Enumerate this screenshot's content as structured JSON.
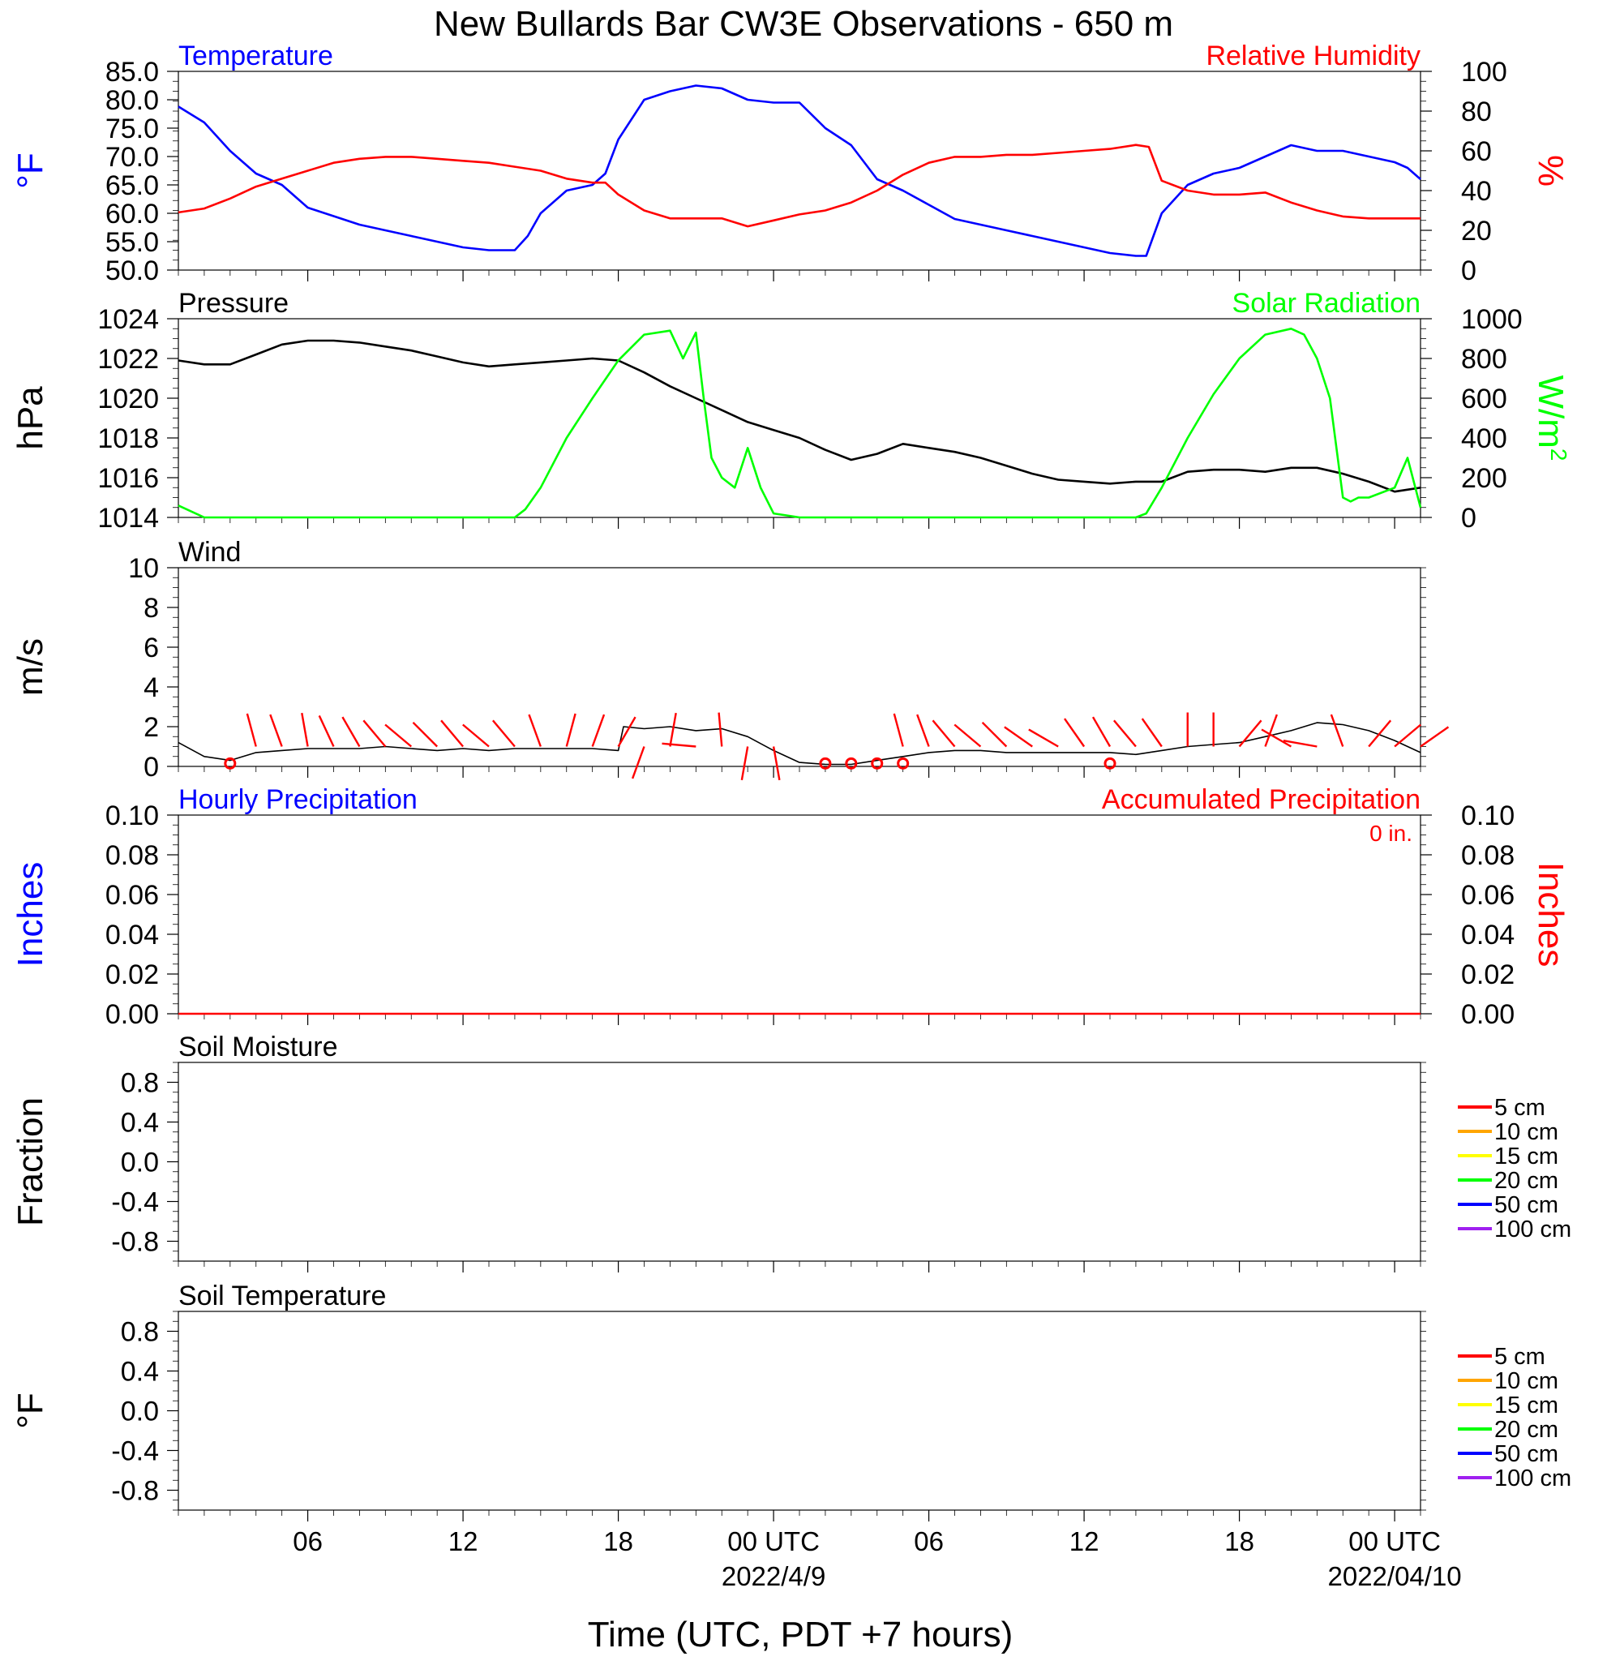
{
  "figure": {
    "title": "New Bullards Bar CW3E Observations - 650 m",
    "xlabel": "Time (UTC, PDT +7 hours)",
    "x_tick_labels": [
      "06",
      "12",
      "18",
      "00 UTC",
      "06",
      "12",
      "18",
      "00 UTC"
    ],
    "x_tick_hours": [
      6,
      12,
      18,
      24,
      30,
      36,
      42,
      48
    ],
    "date_labels": [
      {
        "text": "2022/4/9",
        "hour": 24
      },
      {
        "text": "2022/04/10",
        "hour": 48
      }
    ],
    "x_range_hours": [
      1,
      49
    ],
    "colors": {
      "blue": "#0000ff",
      "red": "#ff0000",
      "green": "#00ff00",
      "black": "#000000"
    }
  },
  "chart_data": [
    {
      "id": "temp_rh",
      "type": "line",
      "left_title": "Temperature",
      "right_title": "Relative Humidity",
      "ylabel_left": "°F",
      "ylabel_right": "%",
      "ylim_left": [
        50,
        85
      ],
      "ylim_right": [
        0,
        100
      ],
      "yticks_left": [
        "85.0",
        "80.0",
        "75.0",
        "70.0",
        "65.0",
        "60.0",
        "55.0",
        "50.0"
      ],
      "yticks_right": [
        "100",
        "80",
        "60",
        "40",
        "20",
        "0"
      ],
      "series": [
        {
          "name": "Temperature",
          "axis": "left",
          "color": "#0000ff",
          "x": [
            1,
            2,
            3,
            4,
            5,
            6,
            7,
            8,
            9,
            10,
            11,
            12,
            13,
            14,
            14.5,
            15,
            16,
            17,
            17.5,
            18,
            19,
            20,
            21,
            22,
            23,
            24,
            25,
            26,
            27,
            28,
            29,
            30,
            31,
            32,
            33,
            34,
            35,
            36,
            37,
            38,
            38.4,
            39,
            40,
            41,
            42,
            43,
            44,
            45,
            46,
            47,
            48,
            48.5,
            49
          ],
          "y": [
            78.8,
            76,
            71,
            67,
            65,
            61,
            59.5,
            58,
            57,
            56,
            55,
            54,
            53.5,
            53.5,
            56,
            60,
            64,
            65,
            67,
            73,
            80,
            81.5,
            82.5,
            82,
            80,
            79.5,
            79.5,
            75,
            72,
            66,
            64,
            61.5,
            59,
            58,
            57,
            56,
            55,
            54,
            53,
            52.5,
            52.5,
            60,
            65,
            67,
            68,
            70,
            72,
            71,
            71,
            70,
            69,
            68,
            66
          ]
        },
        {
          "name": "Relative Humidity",
          "axis": "right",
          "color": "#ff0000",
          "x": [
            1,
            2,
            3,
            4,
            5,
            6,
            7,
            8,
            9,
            10,
            11,
            12,
            13,
            14,
            15,
            16,
            17,
            17.5,
            18,
            19,
            20,
            21,
            22,
            23,
            24,
            25,
            26,
            27,
            28,
            29,
            30,
            31,
            32,
            33,
            34,
            35,
            36,
            37,
            38,
            38.5,
            39,
            40,
            41,
            42,
            43,
            44,
            45,
            46,
            47,
            48,
            49
          ],
          "y": [
            29,
            31,
            36,
            42,
            46,
            50,
            54,
            56,
            57,
            57,
            56,
            55,
            54,
            52,
            50,
            46,
            44,
            44,
            38,
            30,
            26,
            26,
            26,
            22,
            25,
            28,
            30,
            34,
            40,
            48,
            54,
            57,
            57,
            58,
            58,
            59,
            60,
            61,
            63,
            62,
            45,
            40,
            38,
            38,
            39,
            34,
            30,
            27,
            26,
            26,
            26
          ]
        }
      ]
    },
    {
      "id": "pressure_solar",
      "type": "line",
      "left_title": "Pressure",
      "right_title": "Solar Radiation",
      "ylabel_left": "hPa",
      "ylabel_right": "W/m",
      "ylabel_right_sup": "2",
      "ylim_left": [
        1014,
        1024
      ],
      "ylim_right": [
        0,
        1000
      ],
      "yticks_left": [
        "1024",
        "1022",
        "1020",
        "1018",
        "1016",
        "1014"
      ],
      "yticks_right": [
        "1000",
        "800",
        "600",
        "400",
        "200",
        "0"
      ],
      "series": [
        {
          "name": "Pressure",
          "axis": "left",
          "color": "#000000",
          "x": [
            1,
            2,
            3,
            4,
            5,
            6,
            7,
            8,
            9,
            10,
            11,
            12,
            13,
            14,
            15,
            16,
            17,
            18,
            19,
            20,
            21,
            22,
            23,
            24,
            25,
            26,
            27,
            28,
            29,
            30,
            31,
            32,
            33,
            34,
            35,
            36,
            37,
            38,
            39,
            40,
            41,
            42,
            43,
            44,
            45,
            46,
            47,
            48,
            49
          ],
          "y": [
            1021.9,
            1021.7,
            1021.7,
            1022.2,
            1022.7,
            1022.9,
            1022.9,
            1022.8,
            1022.6,
            1022.4,
            1022.1,
            1021.8,
            1021.6,
            1021.7,
            1021.8,
            1021.9,
            1022.0,
            1021.9,
            1021.3,
            1020.6,
            1020.0,
            1019.4,
            1018.8,
            1018.4,
            1018.0,
            1017.4,
            1016.9,
            1017.2,
            1017.7,
            1017.5,
            1017.3,
            1017.0,
            1016.6,
            1016.2,
            1015.9,
            1015.8,
            1015.7,
            1015.8,
            1015.8,
            1016.3,
            1016.4,
            1016.4,
            1016.3,
            1016.5,
            1016.5,
            1016.2,
            1015.8,
            1015.3,
            1015.5
          ]
        },
        {
          "name": "Solar Radiation",
          "axis": "right",
          "color": "#00ff00",
          "x": [
            1,
            2,
            3,
            4,
            5,
            6,
            7,
            8,
            9,
            10,
            11,
            12,
            13,
            14,
            14.4,
            15,
            16,
            17,
            18,
            19,
            20,
            20.5,
            21,
            21.3,
            21.6,
            22,
            22.5,
            23,
            23.5,
            24,
            24.5,
            25,
            26,
            27,
            28,
            29,
            30,
            31,
            32,
            33,
            34,
            35,
            36,
            37,
            38,
            38.4,
            39,
            40,
            41,
            42,
            43,
            44,
            44.5,
            45,
            45.5,
            46,
            46.3,
            46.6,
            47,
            48,
            48.5,
            49
          ],
          "y": [
            60,
            0,
            0,
            0,
            0,
            0,
            0,
            0,
            0,
            0,
            0,
            0,
            0,
            0,
            40,
            150,
            400,
            600,
            790,
            920,
            940,
            800,
            930,
            600,
            300,
            200,
            150,
            350,
            150,
            20,
            10,
            0,
            0,
            0,
            0,
            0,
            0,
            0,
            0,
            0,
            0,
            0,
            0,
            0,
            0,
            20,
            150,
            400,
            620,
            800,
            920,
            950,
            920,
            800,
            600,
            100,
            80,
            100,
            100,
            150,
            300,
            50
          ]
        }
      ]
    },
    {
      "id": "wind",
      "type": "line",
      "left_title": "Wind",
      "ylabel_left": "m/s",
      "ylim_left": [
        0,
        10
      ],
      "yticks_left": [
        "10",
        "8",
        "6",
        "4",
        "2",
        "0"
      ],
      "series": [
        {
          "name": "Wind",
          "axis": "left",
          "color": "#000000",
          "x": [
            1,
            2,
            3,
            4,
            5,
            6,
            7,
            8,
            9,
            10,
            11,
            12,
            13,
            14,
            15,
            16,
            17,
            18,
            18.2,
            19,
            20,
            21,
            22,
            23,
            24,
            25,
            26,
            27,
            28,
            29,
            30,
            31,
            32,
            33,
            34,
            35,
            36,
            37,
            38,
            39,
            40,
            41,
            42,
            43,
            44,
            45,
            46,
            47,
            48,
            49
          ],
          "y": [
            1.2,
            0.5,
            0.3,
            0.7,
            0.8,
            0.9,
            0.9,
            0.9,
            1.0,
            0.9,
            0.8,
            0.9,
            0.8,
            0.9,
            0.9,
            0.9,
            0.9,
            0.8,
            2.0,
            1.9,
            2.0,
            1.8,
            1.9,
            1.5,
            0.8,
            0.2,
            0.1,
            0.1,
            0.3,
            0.5,
            0.7,
            0.8,
            0.8,
            0.7,
            0.7,
            0.7,
            0.7,
            0.7,
            0.6,
            0.8,
            1.0,
            1.1,
            1.2,
            1.5,
            1.8,
            2.2,
            2.1,
            1.8,
            1.3,
            0.7
          ]
        }
      ],
      "wind_barbs": {
        "color": "#ff0000",
        "hours": [
          4,
          5,
          6,
          7,
          8,
          9,
          10,
          11,
          12,
          13,
          14,
          15,
          16,
          17,
          18,
          19,
          20,
          21,
          22,
          23,
          24,
          29,
          30,
          31,
          32,
          33,
          34,
          35,
          36,
          37,
          38,
          39,
          40,
          41,
          42,
          43,
          44,
          45,
          46,
          47,
          48,
          49
        ],
        "directions_deg": [
          345,
          340,
          350,
          335,
          330,
          320,
          310,
          315,
          320,
          310,
          320,
          340,
          15,
          20,
          30,
          200,
          10,
          275,
          355,
          190,
          170,
          345,
          340,
          320,
          310,
          315,
          305,
          300,
          325,
          330,
          320,
          325,
          360,
          0,
          40,
          20,
          300,
          280,
          340,
          40,
          50,
          55
        ]
      },
      "calm_markers": {
        "color": "#ff0000",
        "hours": [
          3,
          26,
          27,
          28,
          29,
          37
        ]
      }
    },
    {
      "id": "precip",
      "type": "line",
      "left_title": "Hourly Precipitation",
      "right_title": "Accumulated Precipitation",
      "annotation": "0 in.",
      "ylabel_left": "Inches",
      "ylabel_right": "Inches",
      "ylim_left": [
        0,
        0.1
      ],
      "ylim_right": [
        0,
        0.1
      ],
      "yticks_left": [
        "0.10",
        "0.08",
        "0.06",
        "0.04",
        "0.02",
        "0.00"
      ],
      "yticks_right": [
        "0.10",
        "0.08",
        "0.06",
        "0.04",
        "0.02",
        "0.00"
      ],
      "series": [
        {
          "name": "Accumulated Precipitation",
          "axis": "right",
          "color": "#ff0000",
          "x": [
            1,
            49
          ],
          "y": [
            0,
            0
          ]
        }
      ]
    },
    {
      "id": "soil_moisture",
      "type": "line",
      "left_title": "Soil Moisture",
      "ylabel_left": "Fraction",
      "ylim_left": [
        -1,
        1
      ],
      "yticks_left": [
        "0.8",
        "0.4",
        "0.0",
        "-0.4",
        "-0.8"
      ],
      "legend": [
        {
          "label": "5 cm",
          "color": "#ff0000"
        },
        {
          "label": "10 cm",
          "color": "#ffa500"
        },
        {
          "label": "15 cm",
          "color": "#ffff00"
        },
        {
          "label": "20 cm",
          "color": "#00ff00"
        },
        {
          "label": "50 cm",
          "color": "#0000ff"
        },
        {
          "label": "100 cm",
          "color": "#a020f0"
        }
      ],
      "series": []
    },
    {
      "id": "soil_temp",
      "type": "line",
      "left_title": "Soil Temperature",
      "ylabel_left": "°F",
      "ylim_left": [
        -1,
        1
      ],
      "yticks_left": [
        "0.8",
        "0.4",
        "0.0",
        "-0.4",
        "-0.8"
      ],
      "legend": [
        {
          "label": "5 cm",
          "color": "#ff0000"
        },
        {
          "label": "10 cm",
          "color": "#ffa500"
        },
        {
          "label": "15 cm",
          "color": "#ffff00"
        },
        {
          "label": "20 cm",
          "color": "#00ff00"
        },
        {
          "label": "50 cm",
          "color": "#0000ff"
        },
        {
          "label": "100 cm",
          "color": "#a020f0"
        }
      ],
      "series": []
    }
  ]
}
